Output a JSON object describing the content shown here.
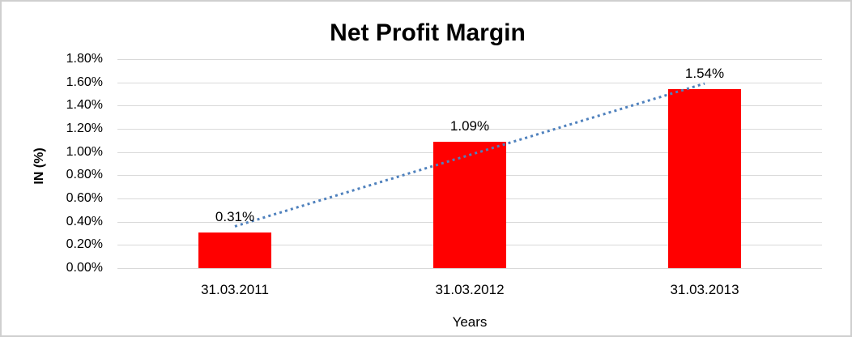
{
  "chart_data": {
    "type": "bar",
    "title": "Net Profit Margin",
    "xlabel": "Years",
    "ylabel": "IN (%)",
    "categories": [
      "31.03.2011",
      "31.03.2012",
      "31.03.2013"
    ],
    "values": [
      0.31,
      1.09,
      1.54
    ],
    "data_labels": [
      "0.31%",
      "1.09%",
      "1.54%"
    ],
    "series_name": "Net Profit Margin",
    "y_tick_labels": [
      "0.00%",
      "0.20%",
      "0.40%",
      "0.60%",
      "0.80%",
      "1.00%",
      "1.20%",
      "1.40%",
      "1.60%",
      "1.80%"
    ],
    "ylim": [
      0,
      1.8
    ],
    "y_step": 0.2,
    "grid": "horizontal",
    "legend": "none",
    "bar_color": "#ff0000",
    "gridline_color": "#d9d9d9",
    "trendline": {
      "type": "linear",
      "style": "dotted",
      "color": "#4f81bd",
      "start_value": 0.36,
      "end_value": 1.59
    }
  }
}
